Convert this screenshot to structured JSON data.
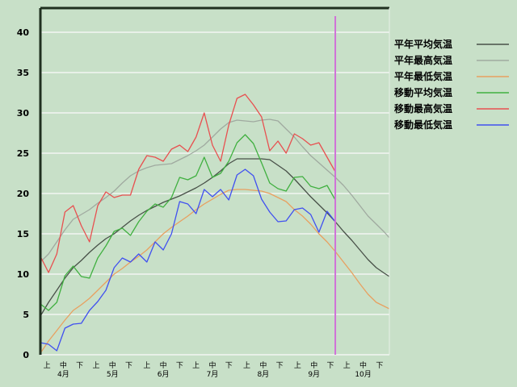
{
  "chart_data": {
    "type": "line",
    "title": "",
    "xlabel": "",
    "ylabel": "",
    "ylim": [
      0,
      43
    ],
    "yticks": [
      0,
      5,
      10,
      15,
      20,
      25,
      30,
      35,
      40
    ],
    "xlim": [
      "4/1",
      "10/31"
    ],
    "grid": "horizontal",
    "legend_position": "right",
    "months": [
      "4月",
      "5月",
      "6月",
      "7月",
      "8月",
      "9月",
      "10月"
    ],
    "dekads": [
      "上",
      "中",
      "下"
    ],
    "marker_date": "9/28",
    "marker_color": "#d070d8",
    "background_color": "#c8e0c8",
    "series": [
      {
        "name": "平年平均気温",
        "color": "#485048",
        "x": [
          "4/1",
          "4/6",
          "4/11",
          "4/16",
          "4/21",
          "4/26",
          "5/1",
          "5/6",
          "5/11",
          "5/16",
          "5/21",
          "5/26",
          "5/31",
          "6/5",
          "6/10",
          "6/15",
          "6/20",
          "6/25",
          "6/30",
          "7/5",
          "7/10",
          "7/15",
          "7/20",
          "7/25",
          "7/30",
          "8/4",
          "8/9",
          "8/14",
          "8/19",
          "8/24",
          "8/29",
          "9/3",
          "9/8",
          "9/13",
          "9/18",
          "9/23",
          "9/28",
          "10/3",
          "10/8",
          "10/13",
          "10/18",
          "10/23",
          "10/28",
          "10/31"
        ],
        "values": [
          4.8,
          6.5,
          8,
          9.5,
          10.8,
          11.7,
          12.7,
          13.6,
          14.4,
          15,
          15.8,
          16.6,
          17.3,
          17.9,
          18.4,
          18.9,
          19.3,
          19.7,
          20.2,
          20.7,
          21.3,
          22,
          22.8,
          23.7,
          24.3,
          24.3,
          24.3,
          24.3,
          24.2,
          23.5,
          22.8,
          21.8,
          20.7,
          19.6,
          18.6,
          17.6,
          16.5,
          15.3,
          14.2,
          13,
          11.8,
          10.8,
          10.1,
          9.7
        ]
      },
      {
        "name": "平年最高気温",
        "color": "#a0aaa0",
        "x": [
          "4/1",
          "4/6",
          "4/11",
          "4/16",
          "4/21",
          "4/26",
          "5/1",
          "5/6",
          "5/11",
          "5/16",
          "5/21",
          "5/26",
          "5/31",
          "6/5",
          "6/10",
          "6/15",
          "6/20",
          "6/25",
          "6/30",
          "7/5",
          "7/10",
          "7/15",
          "7/20",
          "7/25",
          "7/30",
          "8/4",
          "8/9",
          "8/14",
          "8/19",
          "8/24",
          "8/29",
          "9/3",
          "9/8",
          "9/13",
          "9/18",
          "9/23",
          "9/28",
          "10/3",
          "10/8",
          "10/13",
          "10/18",
          "10/23",
          "10/28",
          "10/31"
        ],
        "values": [
          11.5,
          12.5,
          14,
          15.5,
          16.8,
          17.4,
          18,
          18.8,
          19.5,
          20.3,
          21.3,
          22.2,
          22.8,
          23.2,
          23.5,
          23.6,
          23.7,
          24.2,
          24.7,
          25.3,
          26,
          27,
          28,
          28.8,
          29.1,
          29,
          28.9,
          29.1,
          29.2,
          29,
          28,
          27,
          25.8,
          24.7,
          23.8,
          22.9,
          22,
          21,
          19.8,
          18.5,
          17.2,
          16.2,
          15.2,
          14.5
        ]
      },
      {
        "name": "平年最低気温",
        "color": "#e8a060",
        "x": [
          "4/1",
          "4/6",
          "4/11",
          "4/16",
          "4/21",
          "4/26",
          "5/1",
          "5/6",
          "5/11",
          "5/16",
          "5/21",
          "5/26",
          "5/31",
          "6/5",
          "6/10",
          "6/15",
          "6/20",
          "6/25",
          "6/30",
          "7/5",
          "7/10",
          "7/15",
          "7/20",
          "7/25",
          "7/30",
          "8/4",
          "8/9",
          "8/14",
          "8/19",
          "8/24",
          "8/29",
          "9/3",
          "9/8",
          "9/13",
          "9/18",
          "9/23",
          "9/28",
          "10/3",
          "10/8",
          "10/13",
          "10/18",
          "10/23",
          "10/28",
          "10/31"
        ],
        "values": [
          0.2,
          1.7,
          3,
          4.3,
          5.5,
          6.2,
          7,
          8,
          9,
          10,
          10.7,
          11.5,
          12.2,
          13,
          14,
          15,
          15.8,
          16.5,
          17.2,
          18,
          18.7,
          19.3,
          19.9,
          20.4,
          20.5,
          20.5,
          20.4,
          20.3,
          20,
          19.5,
          19,
          18,
          17.2,
          16.2,
          15,
          14,
          12.8,
          11.5,
          10.2,
          8.8,
          7.5,
          6.5,
          6,
          5.7
        ]
      },
      {
        "name": "移動平均気温",
        "color": "#40b040",
        "x": [
          "4/1",
          "4/6",
          "4/11",
          "4/16",
          "4/21",
          "4/26",
          "5/1",
          "5/6",
          "5/11",
          "5/16",
          "5/21",
          "5/26",
          "5/31",
          "6/5",
          "6/10",
          "6/15",
          "6/20",
          "6/25",
          "6/30",
          "7/5",
          "7/10",
          "7/15",
          "7/20",
          "7/25",
          "7/30",
          "8/4",
          "8/9",
          "8/14",
          "8/19",
          "8/24",
          "8/29",
          "9/3",
          "9/8",
          "9/13",
          "9/18",
          "9/23",
          "9/28"
        ],
        "values": [
          6.3,
          5.5,
          6.5,
          9.8,
          11,
          9.7,
          9.5,
          12,
          13.5,
          15.3,
          15.7,
          14.8,
          16.5,
          17.8,
          18.7,
          18.3,
          19.5,
          22,
          21.7,
          22.2,
          24.5,
          22,
          22.5,
          24,
          26.3,
          27.3,
          26.2,
          23.8,
          21.3,
          20.6,
          20.3,
          22,
          22.1,
          20.9,
          20.6,
          21,
          19.2
        ]
      },
      {
        "name": "移動最高気温",
        "color": "#e85050",
        "x": [
          "4/1",
          "4/6",
          "4/11",
          "4/16",
          "4/21",
          "4/26",
          "5/1",
          "5/6",
          "5/11",
          "5/16",
          "5/21",
          "5/26",
          "5/31",
          "6/5",
          "6/10",
          "6/15",
          "6/20",
          "6/25",
          "6/30",
          "7/5",
          "7/10",
          "7/15",
          "7/20",
          "7/25",
          "7/30",
          "8/4",
          "8/9",
          "8/14",
          "8/19",
          "8/24",
          "8/29",
          "9/3",
          "9/8",
          "9/13",
          "9/18",
          "9/23",
          "9/28"
        ],
        "values": [
          12.2,
          10.2,
          12.5,
          17.7,
          18.5,
          16,
          14,
          18.5,
          20.2,
          19.5,
          19.8,
          19.8,
          23,
          24.7,
          24.5,
          24,
          25.5,
          26,
          25.2,
          27,
          30,
          26,
          24,
          28.5,
          31.8,
          32.3,
          31,
          29.5,
          25.3,
          26.5,
          25,
          27.4,
          26.8,
          26,
          26.3,
          24.5,
          22.7
        ]
      },
      {
        "name": "移動最低気温",
        "color": "#4050f0",
        "x": [
          "4/1",
          "4/6",
          "4/11",
          "4/16",
          "4/21",
          "4/26",
          "5/1",
          "5/6",
          "5/11",
          "5/16",
          "5/21",
          "5/26",
          "5/31",
          "6/5",
          "6/10",
          "6/15",
          "6/20",
          "6/25",
          "6/30",
          "7/5",
          "7/10",
          "7/15",
          "7/20",
          "7/25",
          "7/30",
          "8/4",
          "8/9",
          "8/14",
          "8/19",
          "8/24",
          "8/29",
          "9/3",
          "9/8",
          "9/13",
          "9/18",
          "9/23",
          "9/28"
        ],
        "values": [
          1.5,
          1.3,
          0.5,
          3.3,
          3.8,
          3.9,
          5.5,
          6.6,
          8,
          10.8,
          12,
          11.5,
          12.5,
          11.5,
          14,
          13,
          15,
          19,
          18.7,
          17.5,
          20.5,
          19.6,
          20.5,
          19.2,
          22.3,
          23,
          22.2,
          19.3,
          17.7,
          16.5,
          16.6,
          18,
          18.2,
          17.4,
          15.2,
          17.8,
          16.5
        ]
      }
    ]
  }
}
